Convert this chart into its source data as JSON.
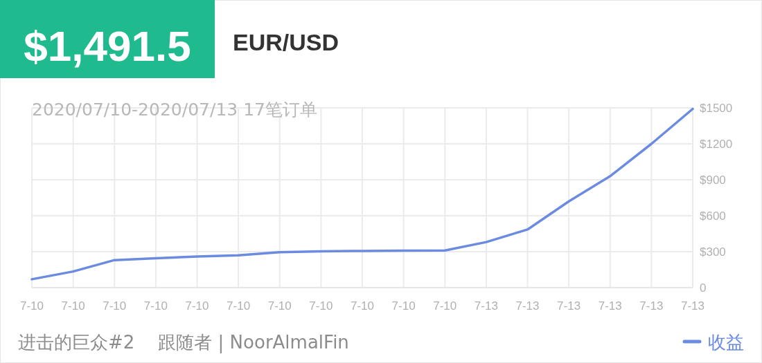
{
  "chart_data": {
    "type": "line",
    "title": "EUR/USD",
    "subtitle": "2020/07/10-2020/07/13 17笔订单",
    "annotations": [
      "$1,491.5",
      "进击的巨众#2",
      "跟随者 | NoorAlmalFin"
    ],
    "categories": [
      "7-10",
      "7-10",
      "7-10",
      "7-10",
      "7-10",
      "7-10",
      "7-10",
      "7-10",
      "7-10",
      "7-10",
      "7-10",
      "7-13",
      "7-13",
      "7-13",
      "7-13",
      "7-13",
      "7-13"
    ],
    "series": [
      {
        "name": "收益",
        "color": "#6b8be0",
        "values": [
          70,
          135,
          230,
          245,
          260,
          270,
          295,
          303,
          306,
          309,
          310,
          380,
          485,
          720,
          930,
          1200,
          1491.5
        ]
      }
    ],
    "ylim": [
      0,
      1500
    ],
    "yticks": [
      0,
      {
        "value": 300,
        "label": "$300"
      },
      {
        "value": 600,
        "label": "$600"
      },
      {
        "value": 900,
        "label": "$900"
      },
      {
        "value": 1200,
        "label": "$1200"
      },
      {
        "value": 1500,
        "label": "$1500"
      }
    ],
    "grid": true,
    "legend": "bottom right",
    "marker": "none",
    "line_style": "solid"
  }
}
